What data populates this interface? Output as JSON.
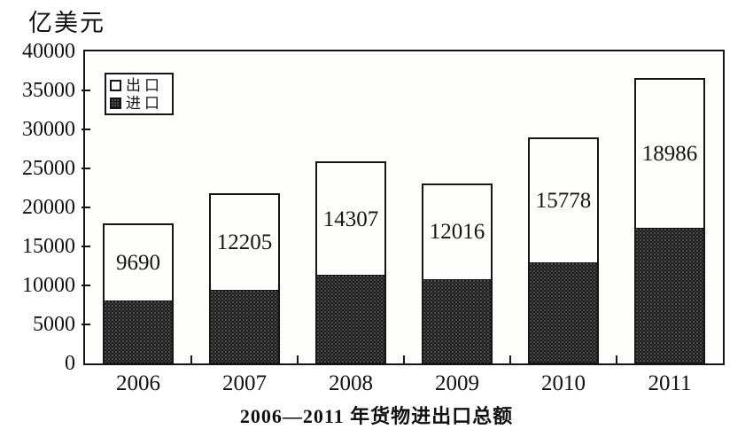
{
  "unit_label": "亿美元",
  "title": "2006—2011 年货物进出口总额",
  "legend": {
    "export_label": "出口",
    "import_label": "进口"
  },
  "colors": {
    "ink": "#151515",
    "paper": "#ffffff",
    "import_fill_dark": "#1d1d1d",
    "export_fill_white": "#fdfdfc"
  },
  "chart_data": {
    "type": "bar",
    "stacked": true,
    "title": "2006—2011 年货物进出口总额",
    "ylabel": "亿美元",
    "xlabel": "",
    "categories": [
      "2006",
      "2007",
      "2008",
      "2009",
      "2010",
      "2011"
    ],
    "series": [
      {
        "name": "进口",
        "role": "import",
        "values": [
          7800,
          9200,
          11100,
          10600,
          12700,
          17200
        ],
        "values_estimated_from_pixels": true,
        "data_labels_visible": false,
        "fill": "dark-speckled"
      },
      {
        "name": "出口",
        "role": "export",
        "values": [
          9690,
          12205,
          14307,
          12016,
          15778,
          18986
        ],
        "values_estimated_from_pixels": false,
        "data_labels_visible": true,
        "fill": "white-outlined"
      }
    ],
    "ylim": [
      0,
      40000
    ],
    "yticks": [
      0,
      5000,
      10000,
      15000,
      20000,
      25000,
      30000,
      35000,
      40000
    ],
    "ytick_labels": [
      "0",
      "5000",
      "10000",
      "15000",
      "20000",
      "25000",
      "30000",
      "35000",
      "40000"
    ],
    "grid": false,
    "legend_position": "inside-top-left"
  }
}
